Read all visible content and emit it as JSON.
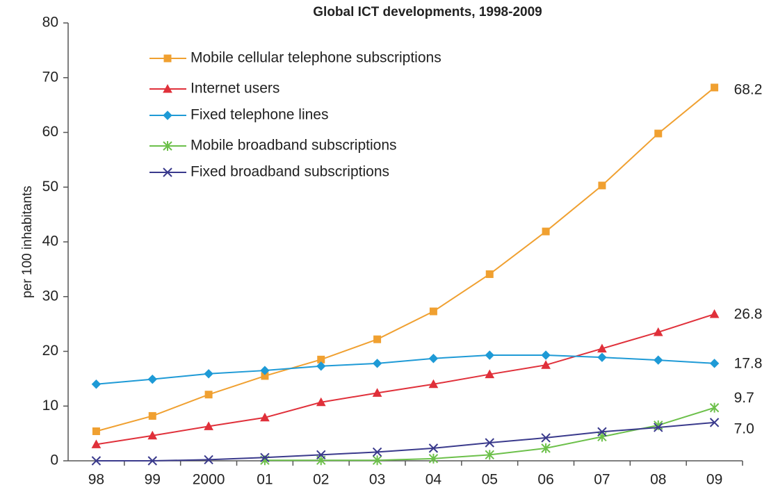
{
  "chart_data": {
    "type": "line",
    "title": "Global ICT developments, 1998-2009",
    "y_label": "per 100 inhabitants",
    "categories": [
      "98",
      "99",
      "2000",
      "01",
      "02",
      "03",
      "04",
      "05",
      "06",
      "07",
      "08",
      "09"
    ],
    "ylim": [
      0,
      80
    ],
    "yticks": [
      0,
      10,
      20,
      30,
      40,
      50,
      60,
      70,
      80
    ],
    "legend": "upper left",
    "series": [
      {
        "name": "Mobile cellular telephone subscriptions",
        "color": "#f0a030",
        "marker": "square",
        "values": [
          5.4,
          8.2,
          12.1,
          15.5,
          18.5,
          22.2,
          27.3,
          34.1,
          41.9,
          50.3,
          59.8,
          68.2
        ],
        "value_labels": [
          null,
          null,
          null,
          null,
          null,
          null,
          null,
          null,
          null,
          null,
          null,
          "68.2"
        ]
      },
      {
        "name": "Internet users",
        "color": "#e0303a",
        "marker": "triangle",
        "values": [
          3.0,
          4.6,
          6.3,
          7.9,
          10.7,
          12.4,
          14.0,
          15.8,
          17.5,
          20.5,
          23.5,
          26.8
        ],
        "value_labels": [
          null,
          null,
          null,
          null,
          null,
          null,
          null,
          null,
          null,
          null,
          null,
          "26.8"
        ]
      },
      {
        "name": "Fixed telephone lines",
        "color": "#1e9ad6",
        "marker": "diamond",
        "values": [
          14.0,
          14.9,
          15.9,
          16.5,
          17.3,
          17.8,
          18.7,
          19.3,
          19.3,
          18.9,
          18.4,
          17.8
        ],
        "value_labels": [
          null,
          null,
          null,
          null,
          null,
          null,
          null,
          null,
          null,
          null,
          null,
          "17.8"
        ]
      },
      {
        "name": "Mobile broadband subscriptions",
        "color": "#6cc04a",
        "marker": "star",
        "values": [
          null,
          null,
          null,
          0.1,
          0.1,
          0.1,
          0.4,
          1.1,
          2.3,
          4.4,
          6.5,
          9.7
        ],
        "value_labels": [
          null,
          null,
          null,
          null,
          null,
          null,
          null,
          null,
          null,
          null,
          null,
          "9.7"
        ]
      },
      {
        "name": "Fixed broadband subscriptions",
        "color": "#3a3a8c",
        "marker": "x",
        "values": [
          0,
          0,
          0.2,
          0.6,
          1.1,
          1.6,
          2.3,
          3.3,
          4.2,
          5.3,
          6.1,
          7.0
        ],
        "value_labels": [
          null,
          null,
          null,
          null,
          null,
          null,
          null,
          null,
          null,
          null,
          null,
          "7.0"
        ]
      }
    ]
  }
}
